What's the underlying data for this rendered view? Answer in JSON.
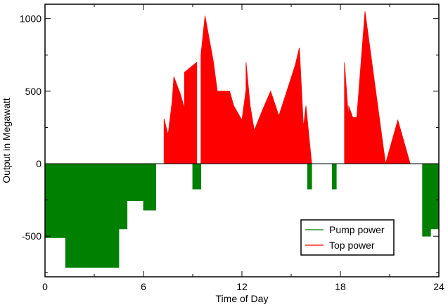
{
  "chart_data": {
    "type": "area",
    "title": "",
    "xlabel": "Time of Day",
    "ylabel": "Output in Megawatt",
    "xlim": [
      0,
      24
    ],
    "ylim": [
      -780,
      1100
    ],
    "xticks": [
      0,
      6,
      12,
      18,
      24
    ],
    "yticks": [
      -500,
      0,
      500,
      1000
    ],
    "grid": false,
    "legend_position": "bottom-right",
    "series": [
      {
        "name": "Pump power",
        "color": "#008000",
        "points": [
          [
            0,
            0
          ],
          [
            0,
            -510
          ],
          [
            1.25,
            -510
          ],
          [
            1.25,
            -715
          ],
          [
            4.5,
            -715
          ],
          [
            4.5,
            -450
          ],
          [
            5.0,
            -450
          ],
          [
            5.0,
            -255
          ],
          [
            6.0,
            -255
          ],
          [
            6.0,
            -320
          ],
          [
            6.75,
            -320
          ],
          [
            6.75,
            0
          ],
          [
            9.0,
            0
          ],
          [
            9.0,
            -175
          ],
          [
            9.5,
            -175
          ],
          [
            9.5,
            0
          ],
          [
            16.0,
            0
          ],
          [
            16.0,
            -175
          ],
          [
            16.25,
            -175
          ],
          [
            16.25,
            0
          ],
          [
            17.5,
            0
          ],
          [
            17.5,
            -175
          ],
          [
            17.75,
            -175
          ],
          [
            17.75,
            0
          ],
          [
            23.0,
            0
          ],
          [
            23.0,
            -500
          ],
          [
            23.5,
            -500
          ],
          [
            23.5,
            -450
          ],
          [
            24,
            -450
          ],
          [
            24,
            0
          ]
        ]
      },
      {
        "name": "Top power",
        "color": "#ff0000",
        "points": [
          [
            7.25,
            0
          ],
          [
            7.25,
            310
          ],
          [
            7.5,
            200
          ],
          [
            7.75,
            430
          ],
          [
            7.85,
            600
          ],
          [
            8.25,
            480
          ],
          [
            8.5,
            380
          ],
          [
            8.5,
            630
          ],
          [
            9.25,
            700
          ],
          [
            9.25,
            0
          ],
          [
            9.5,
            0
          ],
          [
            9.5,
            750
          ],
          [
            9.75,
            1020
          ],
          [
            10.25,
            710
          ],
          [
            10.5,
            500
          ],
          [
            11.25,
            500
          ],
          [
            11.5,
            400
          ],
          [
            12.0,
            300
          ],
          [
            12.25,
            510
          ],
          [
            12.25,
            700
          ],
          [
            12.5,
            400
          ],
          [
            12.75,
            230
          ],
          [
            13.25,
            370
          ],
          [
            13.75,
            500
          ],
          [
            14.25,
            330
          ],
          [
            15.25,
            680
          ],
          [
            15.5,
            800
          ],
          [
            15.75,
            250
          ],
          [
            15.9,
            400
          ],
          [
            16.25,
            0
          ],
          [
            18.25,
            0
          ],
          [
            18.25,
            700
          ],
          [
            18.5,
            300
          ],
          [
            18.5,
            400
          ],
          [
            18.75,
            320
          ],
          [
            19.0,
            320
          ],
          [
            19.5,
            1050
          ],
          [
            20.75,
            0
          ],
          [
            20.75,
            0
          ],
          [
            21.25,
            200
          ],
          [
            21.5,
            300
          ],
          [
            22.25,
            0
          ]
        ]
      }
    ]
  },
  "legend": {
    "items": [
      {
        "label": "Pump power",
        "color": "#008000"
      },
      {
        "label": "Top power",
        "color": "#ff0000"
      }
    ]
  }
}
